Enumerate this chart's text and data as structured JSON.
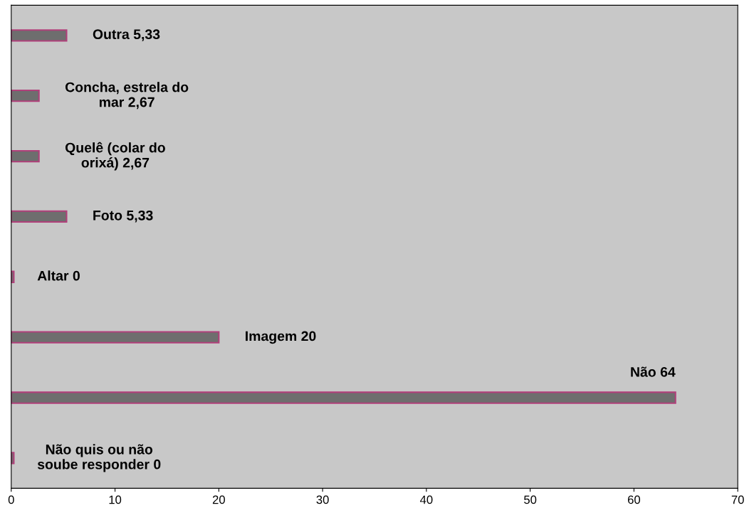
{
  "chart_data": {
    "type": "bar",
    "orientation": "horizontal",
    "categories": [
      "Outra",
      "Concha, estrela do mar",
      "Quelê (colar do orixá)",
      "Foto",
      "Altar",
      "Imagem",
      "Não",
      "Não quis ou não soube responder"
    ],
    "values": [
      5.33,
      2.67,
      2.67,
      5.33,
      0,
      20,
      64,
      0
    ],
    "value_labels": [
      "5,33",
      "2,67",
      "2,67",
      "5,33",
      "0",
      "20",
      "64",
      "0"
    ],
    "color": "#6e6e6e",
    "xlim": [
      0,
      70
    ],
    "xticks": [
      0,
      10,
      20,
      30,
      40,
      50,
      60,
      70
    ],
    "tick_labels": "x",
    "grid": false,
    "legend": false
  }
}
